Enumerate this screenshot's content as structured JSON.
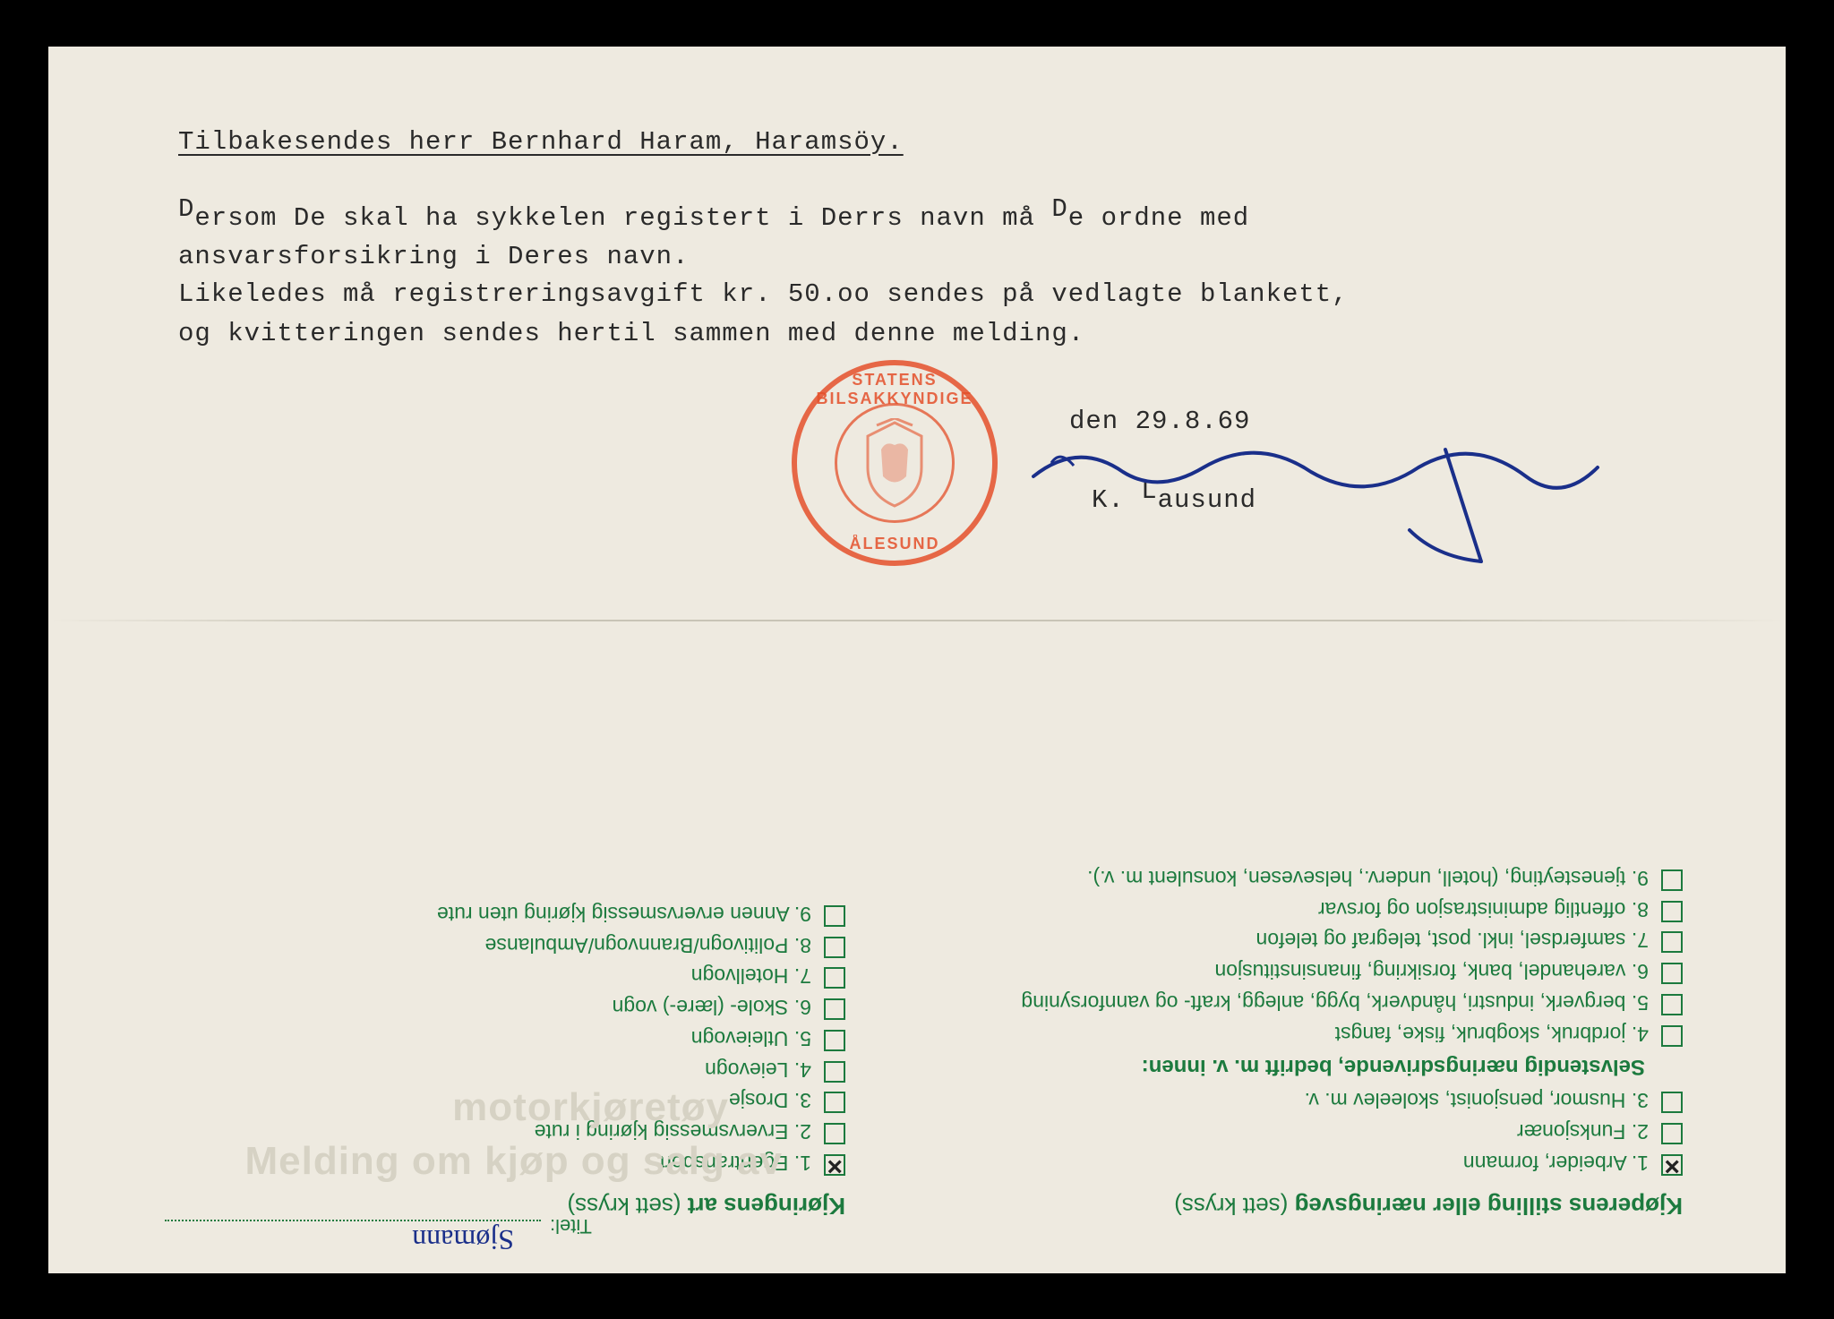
{
  "document": {
    "background_color": "#eeeae0",
    "typed_text_color": "#2a2a2a",
    "green_ink": "#1c7a3e",
    "stamp_color": "#e4502a",
    "blue_ink": "#1a2f8a",
    "header": "Tilbakesendes herr Bernhard Haram, Haramsöy.",
    "body_line1": "Dersom De skal ha sykkelen registert i Derrs navn må De ordne med",
    "body_line2": "ansvarsforsikring i Deres navn.",
    "body_line3": "Likeledes må registreringsavgift kr. 50.oo sendes på vedlagte blankett,",
    "body_line4": "og kvitteringen sendes hertil sammen med denne melding.",
    "date": "den 29.8.69",
    "signer": "K. Lausund",
    "stamp_top": "STATENS BILSAKKYNDIGE",
    "stamp_bottom": "ÅLESUND"
  },
  "form": {
    "title_label": "Titel:",
    "title_value": "Sjømann",
    "left_heading": "Kjøperens stilling eller næringsveg",
    "heading_hint": "(sett kryss)",
    "right_heading": "Kjøringens art",
    "subheading": "Selvstendig næringsdrivende, bedrift m. v. innen:",
    "left_items": [
      {
        "n": "1.",
        "label": "Arbeider, formann",
        "checked": true
      },
      {
        "n": "2.",
        "label": "Funksjonær",
        "checked": false
      },
      {
        "n": "3.",
        "label": "Husmor, pensjonist, skoleelev m. v.",
        "checked": false
      }
    ],
    "left_items_sub": [
      {
        "n": "4.",
        "label": "jordbruk, skogbruk, fiske, fangst",
        "checked": false
      },
      {
        "n": "5.",
        "label": "bergverk, industri, håndverk, bygg, anlegg, kraft- og vannforsyning",
        "checked": false
      },
      {
        "n": "6.",
        "label": "varehandel, bank, forsikring, finansinstitusjon",
        "checked": false
      },
      {
        "n": "7.",
        "label": "samferdsel, inkl. post, telegraf og telefon",
        "checked": false
      },
      {
        "n": "8.",
        "label": "offentlig administrasjon og forsvar",
        "checked": false
      },
      {
        "n": "9.",
        "label": "tjenesteyting, (hotell, underv., helsevesen, konsulent m. v.).",
        "checked": false
      }
    ],
    "right_items": [
      {
        "n": "1.",
        "label": "Egentransport",
        "checked": true
      },
      {
        "n": "2.",
        "label": "Ervervsmessig kjøring i rute",
        "checked": false
      },
      {
        "n": "3.",
        "label": "Drosje",
        "checked": false
      },
      {
        "n": "4.",
        "label": "Leievogn",
        "checked": false
      },
      {
        "n": "5.",
        "label": "Utleievogn",
        "checked": false
      },
      {
        "n": "6.",
        "label": "Skole- (lære-) vogn",
        "checked": false
      },
      {
        "n": "7.",
        "label": "Hotellvogn",
        "checked": false
      },
      {
        "n": "8.",
        "label": "Politivogn/Brannvogn/Ambulanse",
        "checked": false
      },
      {
        "n": "9.",
        "label": "Annen ervervsmessig kjøring uten rute",
        "checked": false
      }
    ]
  },
  "watermark": {
    "line1": "Melding om kjøp og salg av",
    "line2": "motorkjøretøy"
  }
}
